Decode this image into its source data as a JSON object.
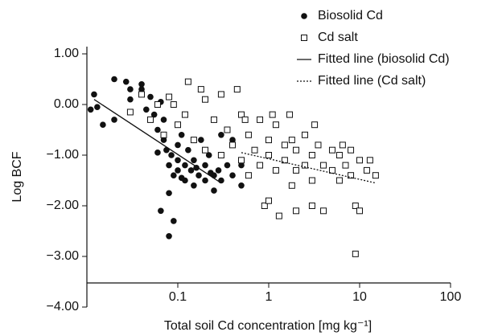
{
  "chart_data": {
    "type": "scatter",
    "x_label": "Total soil Cd concentration [mg kg⁻¹]",
    "y_label": "Log BCF",
    "x_log": true,
    "xlim": [
      0.01,
      100
    ],
    "xticks": [
      0.1,
      1,
      10,
      100
    ],
    "ylim": [
      -4,
      1
    ],
    "yticks": [
      {
        "value": 1,
        "label": "1.00"
      },
      {
        "value": 0,
        "label": "0.00"
      },
      {
        "value": -1,
        "label": "−1.00"
      },
      {
        "value": -2,
        "label": "−2.00"
      },
      {
        "value": -3,
        "label": "−3.00"
      },
      {
        "value": -4,
        "label": "−4.00"
      }
    ],
    "legend": "top-right",
    "series": [
      {
        "name": "Biosolid Cd",
        "kind": "points",
        "marker": "circle",
        "color": "#111111",
        "x": [
          0.011,
          0.012,
          0.013,
          0.015,
          0.02,
          0.02,
          0.027,
          0.03,
          0.03,
          0.04,
          0.04,
          0.045,
          0.05,
          0.055,
          0.06,
          0.065,
          0.065,
          0.07,
          0.07,
          0.075,
          0.08,
          0.08,
          0.08,
          0.085,
          0.09,
          0.09,
          0.1,
          0.1,
          0.1,
          0.11,
          0.12,
          0.12,
          0.13,
          0.14,
          0.15,
          0.15,
          0.17,
          0.18,
          0.2,
          0.2,
          0.22,
          0.25,
          0.25,
          0.28,
          0.3,
          0.3,
          0.35,
          0.4,
          0.4,
          0.5,
          0.5,
          0.06,
          0.11,
          0.16,
          0.23
        ],
        "y": [
          -0.1,
          0.2,
          -0.05,
          -0.4,
          0.5,
          -0.3,
          0.45,
          0.3,
          0.1,
          0.4,
          0.3,
          -0.1,
          0.15,
          -0.2,
          -0.5,
          0.05,
          -2.1,
          -0.3,
          -0.7,
          -0.9,
          -1.2,
          -1.75,
          -2.6,
          -1.0,
          -1.4,
          -2.3,
          -0.8,
          -1.1,
          -1.3,
          -0.6,
          -1.2,
          -1.5,
          -0.9,
          -1.3,
          -1.1,
          -1.6,
          -1.4,
          -0.7,
          -1.2,
          -1.5,
          -1.0,
          -1.4,
          -1.7,
          -1.3,
          -0.6,
          -1.5,
          -1.2,
          -0.7,
          -1.4,
          -1.2,
          -1.6,
          -0.95,
          -1.45,
          -1.25,
          -1.35
        ]
      },
      {
        "name": "Cd salt",
        "kind": "points",
        "marker": "square",
        "color": "#111111",
        "x": [
          0.03,
          0.04,
          0.05,
          0.06,
          0.07,
          0.08,
          0.1,
          0.12,
          0.13,
          0.15,
          0.2,
          0.2,
          0.25,
          0.3,
          0.3,
          0.35,
          0.4,
          0.45,
          0.5,
          0.5,
          0.6,
          0.6,
          0.7,
          0.8,
          0.8,
          0.9,
          1,
          1,
          1,
          1.2,
          1.2,
          1.3,
          1.5,
          1.5,
          1.7,
          1.8,
          2,
          2,
          2,
          2.5,
          2.5,
          3,
          3,
          3,
          3.5,
          4,
          4,
          5,
          5,
          6,
          6,
          7,
          8,
          8,
          9,
          9,
          10,
          10,
          12,
          13,
          15,
          0.09,
          0.18,
          0.55,
          1.1,
          3.2,
          1.8,
          6.5
        ],
        "y": [
          -0.15,
          0.2,
          -0.3,
          0.0,
          -0.6,
          0.15,
          -0.4,
          -0.2,
          0.45,
          -0.7,
          0.1,
          -0.9,
          -0.3,
          0.2,
          -1.0,
          -0.5,
          -0.8,
          0.3,
          -1.1,
          -0.2,
          -0.6,
          -1.4,
          -0.9,
          -0.3,
          -1.2,
          -2.0,
          -0.7,
          -1.0,
          -1.9,
          -0.4,
          -1.3,
          -2.2,
          -0.8,
          -1.1,
          -0.2,
          -1.6,
          -0.9,
          -1.3,
          -2.1,
          -0.6,
          -1.2,
          -1.0,
          -1.5,
          -2.0,
          -0.8,
          -1.2,
          -2.1,
          -0.9,
          -1.3,
          -1.0,
          -1.5,
          -1.2,
          -0.9,
          -1.4,
          -2.0,
          -2.95,
          -1.1,
          -2.1,
          -1.3,
          -1.1,
          -1.4,
          0.0,
          0.3,
          -0.3,
          -0.2,
          -0.4,
          -0.7,
          -0.8
        ]
      },
      {
        "name": "Fitted line (biosolid Cd)",
        "kind": "line",
        "dash": "solid",
        "color": "#111111",
        "x": [
          0.012,
          0.3
        ],
        "y": [
          0.1,
          -1.55
        ]
      },
      {
        "name": "Fitted line (Cd salt)",
        "kind": "line",
        "dash": "dotted",
        "color": "#111111",
        "x": [
          0.5,
          15
        ],
        "y": [
          -0.95,
          -1.55
        ]
      }
    ]
  }
}
